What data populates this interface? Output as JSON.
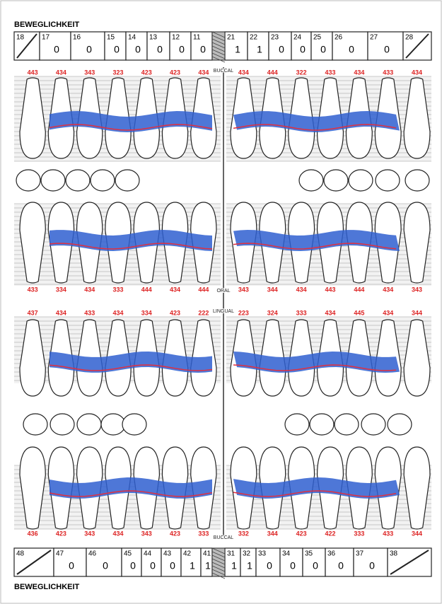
{
  "header": {
    "title": "BEWEGLICHKEIT"
  },
  "upper_mobility": [
    {
      "tooth": "18"
    },
    {
      "tooth": "17",
      "value": 0
    },
    {
      "tooth": "16",
      "value": 0
    },
    {
      "tooth": "15",
      "value": 0
    },
    {
      "tooth": "14",
      "value": 0
    },
    {
      "tooth": "13",
      "value": 0
    },
    {
      "tooth": "12",
      "value": 0
    },
    {
      "tooth": "11",
      "value": 0
    },
    {
      "tooth": "21",
      "value": 1
    },
    {
      "tooth": "22",
      "value": 1
    },
    {
      "tooth": "23",
      "value": 0
    },
    {
      "tooth": "24",
      "value": 0
    },
    {
      "tooth": "25",
      "value": 0
    },
    {
      "tooth": "26",
      "value": 0
    },
    {
      "tooth": "27",
      "value": 0
    },
    {
      "tooth": "28"
    }
  ],
  "labels": {
    "upper_buccal": "BUCCAL",
    "upper_oral": "ORAL",
    "lower_lingual": "LINGUAL",
    "lower_buccal": "BUCCAL"
  },
  "pocket_depths": {
    "upper_buccal": {
      "left": [
        "443",
        "434",
        "343",
        "323",
        "423",
        "423",
        "434"
      ],
      "right": [
        "434",
        "444",
        "322",
        "433",
        "434",
        "433",
        "434"
      ]
    },
    "upper_oral": {
      "left": [
        "433",
        "334",
        "434",
        "333",
        "444",
        "434",
        "444"
      ],
      "right": [
        "343",
        "344",
        "434",
        "443",
        "444",
        "434",
        "343"
      ]
    },
    "lower_lingual": {
      "left": [
        "437",
        "434",
        "433",
        "434",
        "334",
        "423",
        "222"
      ],
      "right": [
        "223",
        "324",
        "333",
        "434",
        "445",
        "434",
        "344"
      ]
    },
    "lower_buccal": {
      "left": [
        "436",
        "423",
        "343",
        "434",
        "343",
        "423",
        "333"
      ],
      "right": [
        "332",
        "344",
        "423",
        "422",
        "333",
        "433",
        "344"
      ]
    }
  },
  "lower_mobility": [
    {
      "tooth": "48"
    },
    {
      "tooth": "47",
      "value": 0
    },
    {
      "tooth": "46",
      "value": 0
    },
    {
      "tooth": "45",
      "value": 0
    },
    {
      "tooth": "44",
      "value": 0
    },
    {
      "tooth": "43",
      "value": 0
    },
    {
      "tooth": "42",
      "value": 1
    },
    {
      "tooth": "41",
      "value": 1
    },
    {
      "tooth": "31",
      "value": 1
    },
    {
      "tooth": "32",
      "value": 1
    },
    {
      "tooth": "33",
      "value": 0
    },
    {
      "tooth": "34",
      "value": 0
    },
    {
      "tooth": "35",
      "value": 0
    },
    {
      "tooth": "36",
      "value": 0
    },
    {
      "tooth": "37",
      "value": 0
    },
    {
      "tooth": "38"
    }
  ],
  "footer": {
    "title": "BEWEGLICHKEIT"
  }
}
